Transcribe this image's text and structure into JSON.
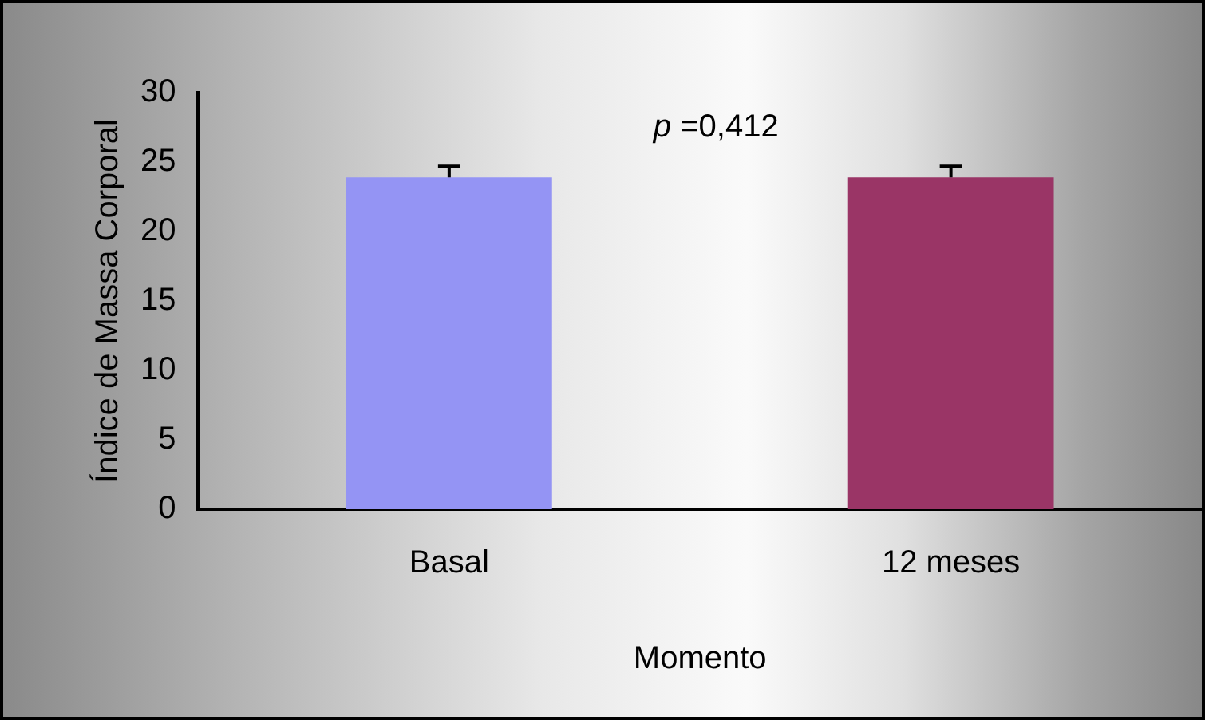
{
  "chart_data": {
    "type": "bar",
    "xlabel": "Momento",
    "ylabel": "Índice de Massa Corporal",
    "categories": [
      "Basal",
      "12 meses"
    ],
    "values": [
      23.9,
      23.9
    ],
    "colors": [
      "#9494f4",
      "#9a3566"
    ],
    "errors": [
      [
        23.9,
        24.7
      ],
      [
        23.9,
        24.7
      ]
    ],
    "ylim": [
      0,
      30
    ],
    "yticks": [
      0,
      5,
      10,
      15,
      20,
      25,
      30
    ],
    "grid": false,
    "legend": false,
    "annotations": [
      "p =0,412"
    ]
  }
}
